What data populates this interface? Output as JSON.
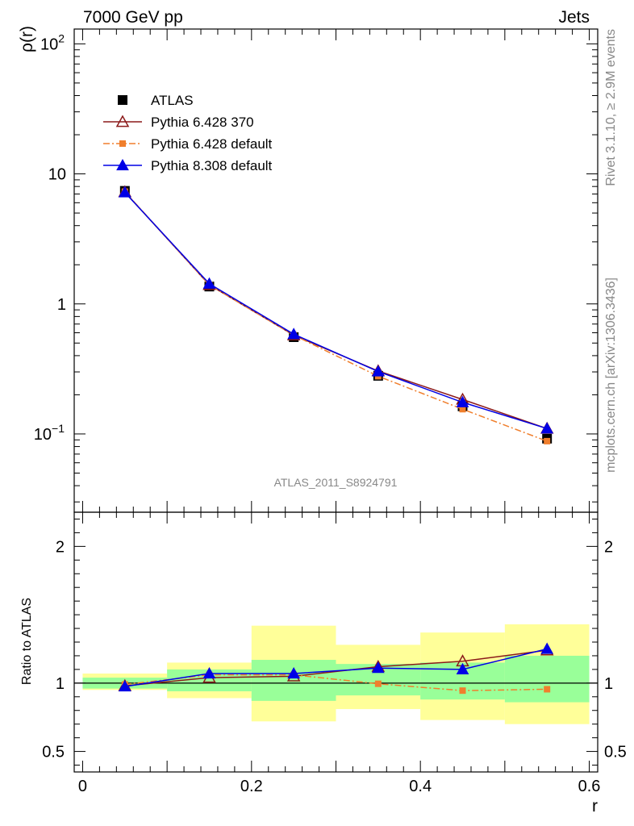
{
  "header": {
    "left": "7000 GeV pp",
    "right": "Jets"
  },
  "side_texts": {
    "rivet": "Rivet 3.1.10, ≥ 2.9M events",
    "mcplots": "mcplots.cern.ch [arXiv:1306.3436]"
  },
  "analysis_id": "ATLAS_2011_S8924791",
  "colors": {
    "atlas": "#000000",
    "py6_370": "#8b1a1a",
    "py6_default": "#f07f2d",
    "py8_default": "#0000e6",
    "band_stat": "#99ff99",
    "band_total": "#ffff99"
  },
  "chart_data": [
    {
      "type": "line",
      "panel": "main",
      "ylabel": "ρ(r)",
      "yscale": "log",
      "ylim": [
        0.025,
        130
      ],
      "xlim": [
        -0.01,
        0.61
      ],
      "ytick_labels": [
        {
          "value": 0.1,
          "base": "10",
          "exp": "−1"
        },
        {
          "value": 1,
          "base": "1",
          "exp": ""
        },
        {
          "value": 10,
          "base": "10",
          "exp": ""
        },
        {
          "value": 100,
          "base": "10",
          "exp": "2"
        }
      ],
      "legend_position": "upper-left",
      "x": [
        0.05,
        0.15,
        0.25,
        0.35,
        0.45,
        0.55
      ],
      "series": [
        {
          "name": "ATLAS",
          "marker": "square",
          "values": [
            7.4,
            1.36,
            0.555,
            0.28,
            0.163,
            0.092
          ]
        },
        {
          "name": "Pythia 6.428 370",
          "marker": "triangle-open",
          "values": [
            7.25,
            1.4,
            0.575,
            0.305,
            0.184,
            0.11
          ]
        },
        {
          "name": "Pythia 6.428 default",
          "marker": "small-square",
          "values": [
            7.3,
            1.4,
            0.575,
            0.278,
            0.155,
            0.088
          ]
        },
        {
          "name": "Pythia 8.308 default",
          "marker": "triangle",
          "values": [
            7.2,
            1.43,
            0.585,
            0.302,
            0.175,
            0.11
          ]
        }
      ]
    },
    {
      "type": "line",
      "panel": "ratio",
      "xlabel": "r",
      "ylabel": "Ratio to ATLAS",
      "ylim": [
        0.35,
        2.25
      ],
      "xlim": [
        -0.01,
        0.61
      ],
      "xtick_labels": [
        "0",
        "0.2",
        "0.4",
        "0.6"
      ],
      "ytick_labels": [
        "0.5",
        "1",
        "2"
      ],
      "x": [
        0.05,
        0.15,
        0.25,
        0.35,
        0.45,
        0.55
      ],
      "band_edges": [
        0.0,
        0.1,
        0.2,
        0.3,
        0.4,
        0.5,
        0.6
      ],
      "band_stat": [
        [
          0.96,
          1.04
        ],
        [
          0.94,
          1.1
        ],
        [
          0.87,
          1.17
        ],
        [
          0.91,
          1.14
        ],
        [
          0.88,
          1.15
        ],
        [
          0.86,
          1.2
        ]
      ],
      "band_total": [
        [
          0.95,
          1.07
        ],
        [
          0.89,
          1.15
        ],
        [
          0.72,
          1.42
        ],
        [
          0.81,
          1.28
        ],
        [
          0.73,
          1.37
        ],
        [
          0.7,
          1.43
        ]
      ],
      "series": [
        {
          "name": "Pythia 6.428 370",
          "marker": "triangle-open",
          "values": [
            0.98,
            1.04,
            1.05,
            1.12,
            1.16,
            1.24
          ]
        },
        {
          "name": "Pythia 6.428 default",
          "marker": "small-square",
          "values": [
            0.99,
            1.06,
            1.06,
            0.995,
            0.945,
            0.955
          ]
        },
        {
          "name": "Pythia 8.308 default",
          "marker": "triangle",
          "values": [
            0.975,
            1.07,
            1.07,
            1.11,
            1.1,
            1.25
          ]
        }
      ]
    }
  ]
}
